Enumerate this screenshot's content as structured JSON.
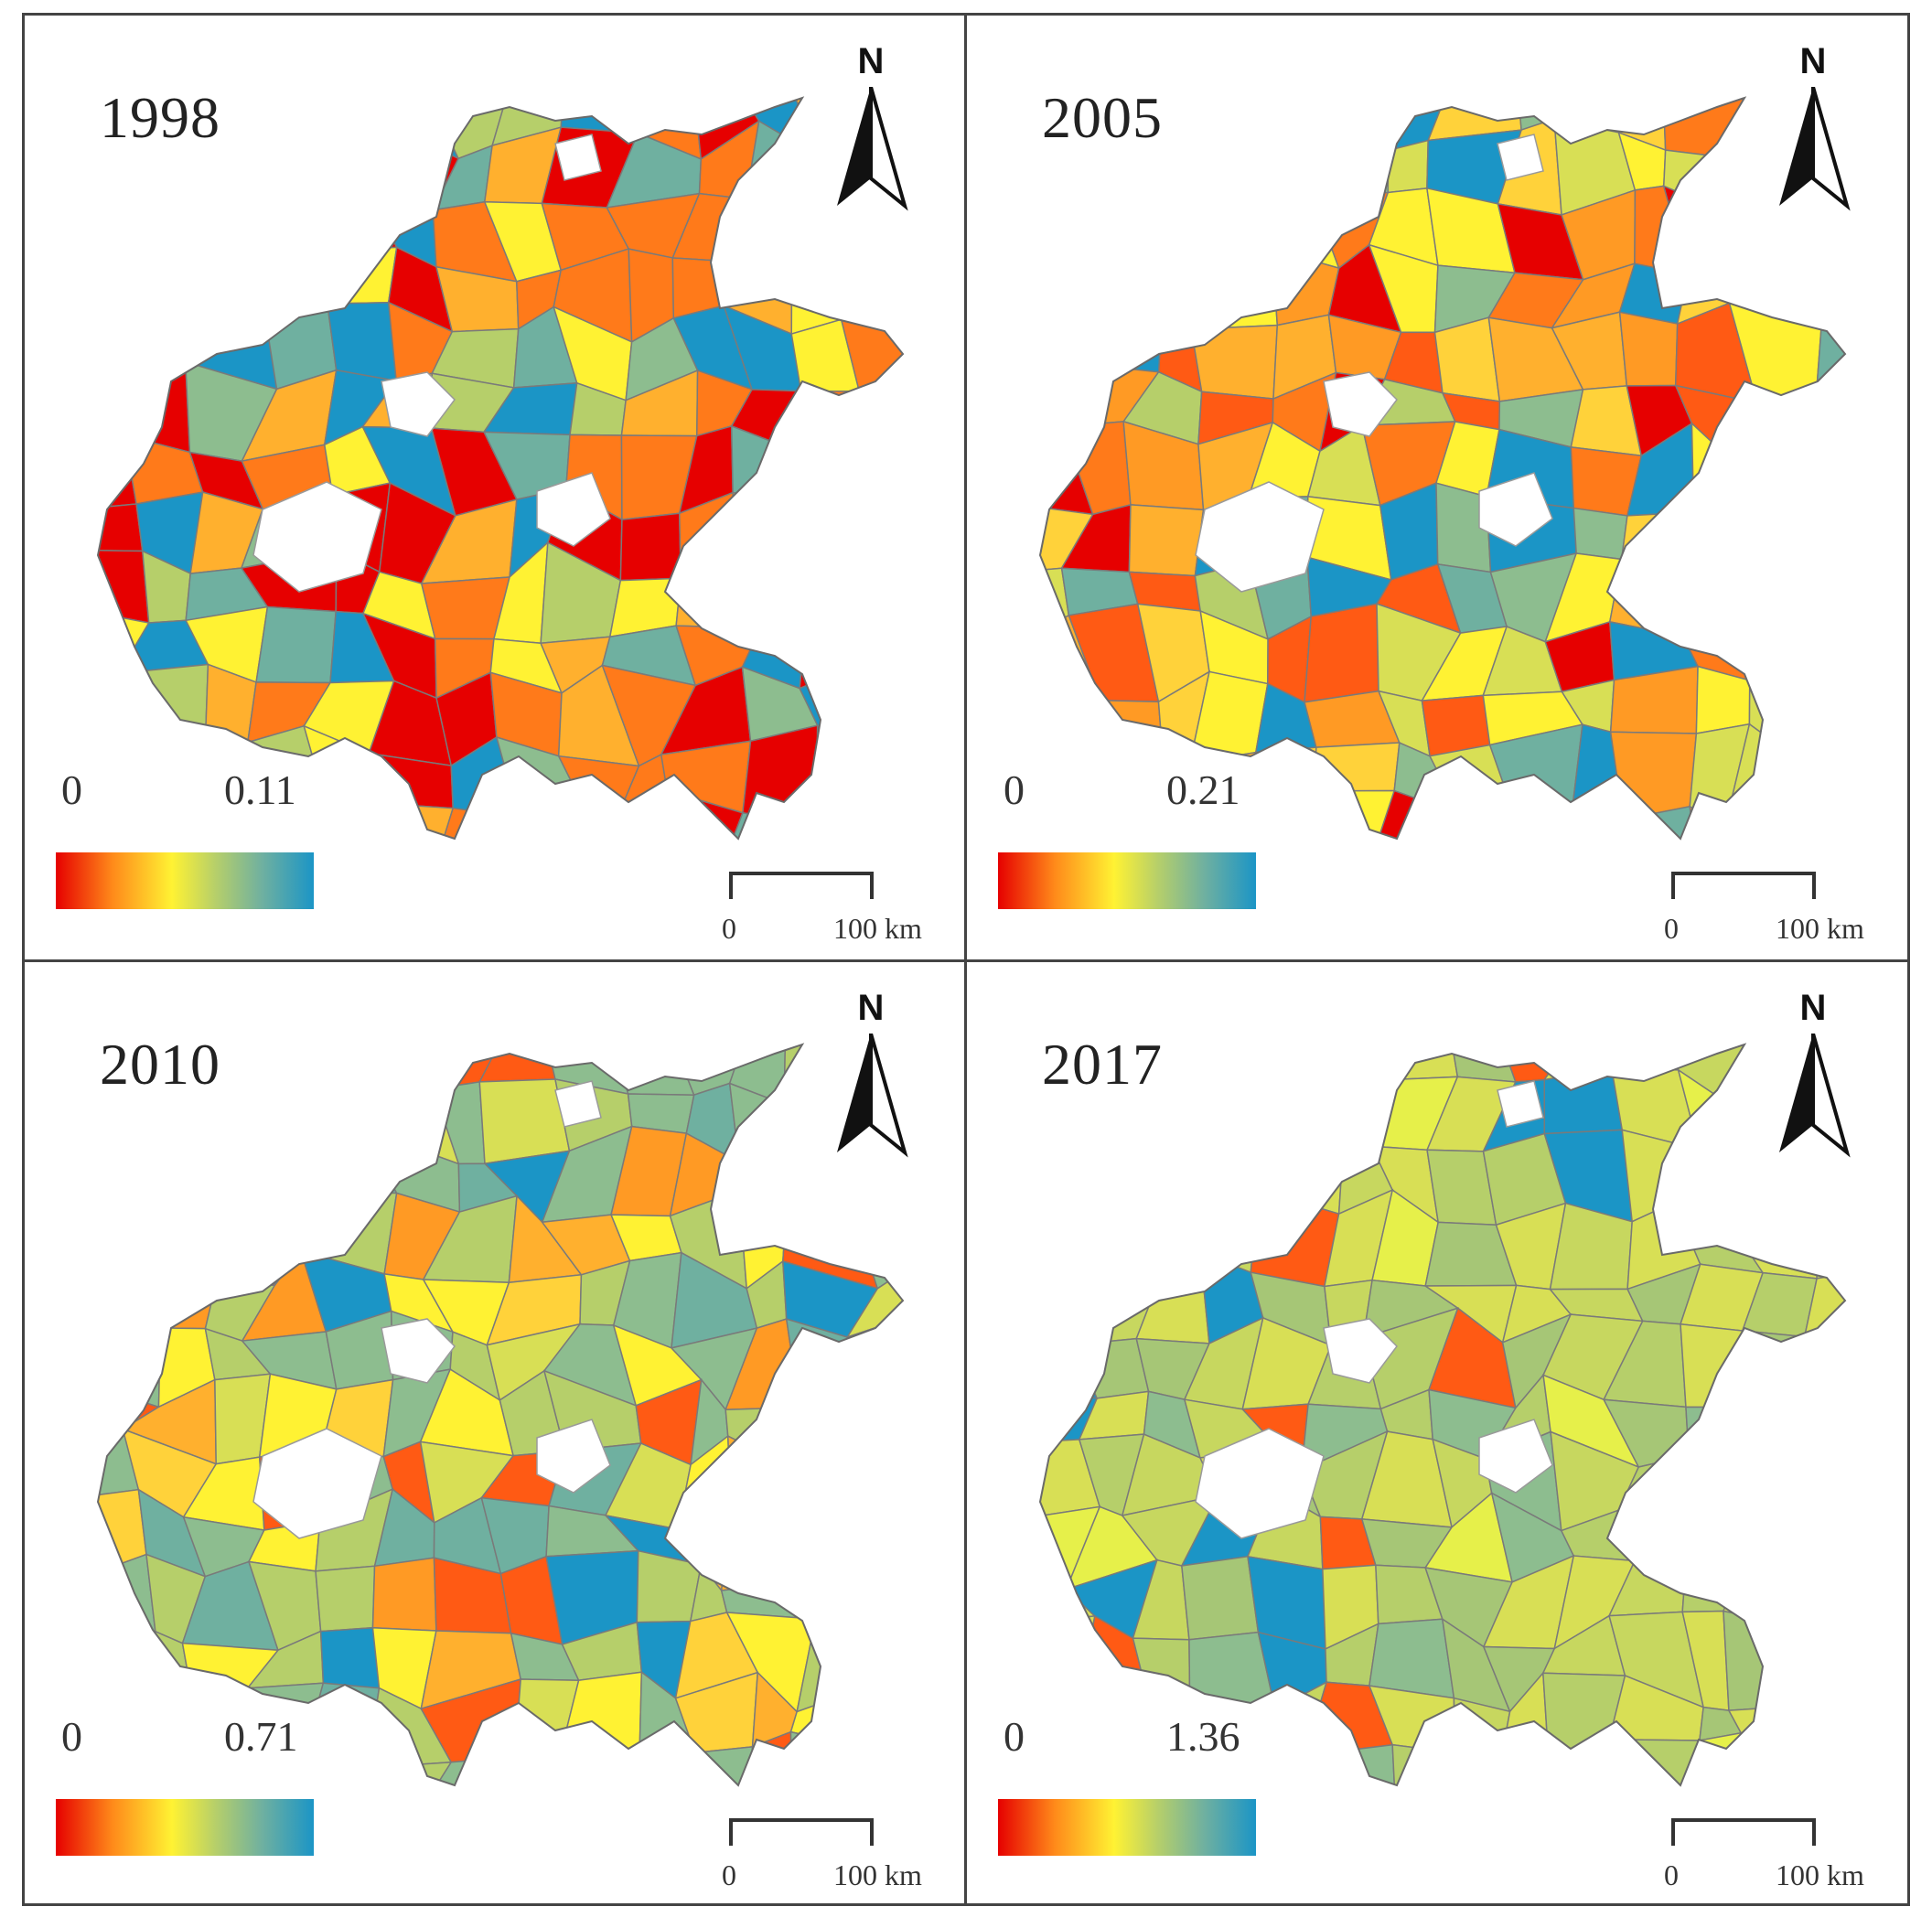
{
  "panels": [
    {
      "year": "1998",
      "legend_min": "0",
      "legend_max": "0.11",
      "north_label": "N",
      "scale_start": "0",
      "scale_end": "100 km",
      "palette": [
        "#e60000",
        "#e60000",
        "#e60000",
        "#ff7a1a",
        "#ff7a1a",
        "#ffb02e",
        "#6fb0a0",
        "#6fb0a0",
        "#1b95c6",
        "#1b95c6",
        "#8dbd8f",
        "#b6cf6a",
        "#fff233"
      ]
    },
    {
      "year": "2005",
      "legend_min": "0",
      "legend_max": "0.21",
      "north_label": "N",
      "scale_start": "0",
      "scale_end": "100 km",
      "palette": [
        "#e60000",
        "#ff5a14",
        "#ff7a1a",
        "#ff9a24",
        "#ffb02e",
        "#ffd23a",
        "#fff233",
        "#fff233",
        "#d8df55",
        "#b6cf6a",
        "#8dbd8f",
        "#6fb0a0",
        "#1b95c6"
      ]
    },
    {
      "year": "2010",
      "legend_min": "0",
      "legend_max": "0.71",
      "north_label": "N",
      "scale_start": "0",
      "scale_end": "100 km",
      "palette": [
        "#ff5a14",
        "#ff9a24",
        "#ffb02e",
        "#ffd23a",
        "#fff233",
        "#fff233",
        "#d8df55",
        "#b6cf6a",
        "#b6cf6a",
        "#8dbd8f",
        "#8dbd8f",
        "#6fb0a0",
        "#1b95c6"
      ]
    },
    {
      "year": "2017",
      "legend_min": "0",
      "legend_max": "1.36",
      "north_label": "N",
      "scale_start": "0",
      "scale_end": "100 km",
      "palette": [
        "#d8df55",
        "#d8df55",
        "#d8df55",
        "#c7d75f",
        "#c7d75f",
        "#b6cf6a",
        "#b6cf6a",
        "#a6c676",
        "#a6c676",
        "#8dbd8f",
        "#e6f04a",
        "#ff5a14",
        "#1b95c6"
      ]
    }
  ],
  "colors": {
    "frame": "#444444",
    "outline": "#7a7a7a",
    "legend_stops": [
      "#e60000",
      "#ff8a1a",
      "#fff233",
      "#b6cf6a",
      "#6fb0a0",
      "#1b95c6"
    ]
  }
}
